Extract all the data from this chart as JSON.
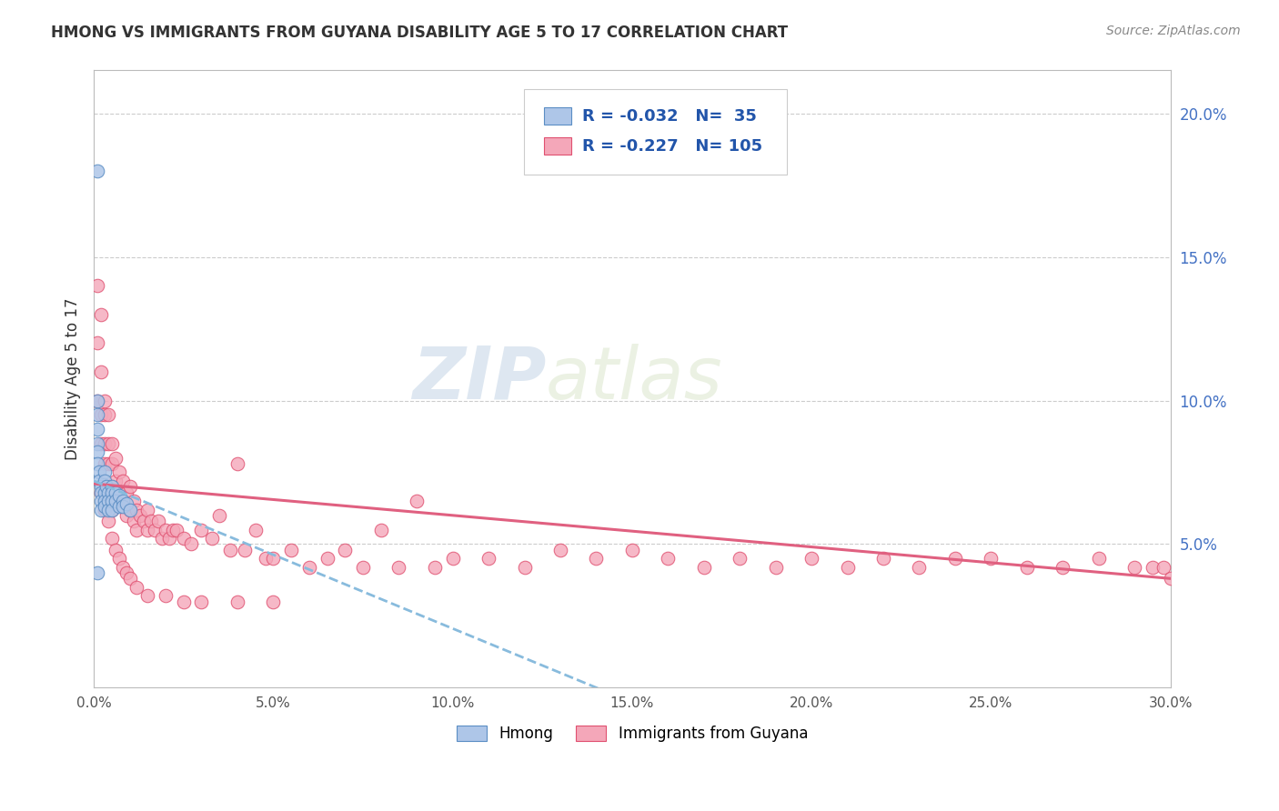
{
  "title": "HMONG VS IMMIGRANTS FROM GUYANA DISABILITY AGE 5 TO 17 CORRELATION CHART",
  "source": "Source: ZipAtlas.com",
  "ylabel": "Disability Age 5 to 17",
  "xmin": 0.0,
  "xmax": 0.3,
  "ymin": 0.0,
  "ymax": 0.215,
  "xticks": [
    0.0,
    0.05,
    0.1,
    0.15,
    0.2,
    0.25,
    0.3
  ],
  "xtick_labels": [
    "0.0%",
    "5.0%",
    "10.0%",
    "15.0%",
    "20.0%",
    "25.0%",
    "30.0%"
  ],
  "yticks_right": [
    0.05,
    0.1,
    0.15,
    0.2
  ],
  "ytick_right_labels": [
    "5.0%",
    "10.0%",
    "15.0%",
    "20.0%"
  ],
  "hmong_R": -0.032,
  "hmong_N": 35,
  "guyana_R": -0.227,
  "guyana_N": 105,
  "hmong_color": "#aec6e8",
  "guyana_color": "#f4a7b9",
  "hmong_edge": "#5b8ec4",
  "guyana_edge": "#e05070",
  "trend_hmong_color": "#88bbdd",
  "trend_guyana_color": "#e06080",
  "watermark_zip": "ZIP",
  "watermark_atlas": "atlas",
  "legend_labels": [
    "Hmong",
    "Immigrants from Guyana"
  ],
  "hmong_x": [
    0.001,
    0.001,
    0.001,
    0.001,
    0.001,
    0.001,
    0.001,
    0.0015,
    0.0015,
    0.002,
    0.002,
    0.002,
    0.002,
    0.003,
    0.003,
    0.003,
    0.003,
    0.003,
    0.0035,
    0.004,
    0.004,
    0.004,
    0.005,
    0.005,
    0.005,
    0.005,
    0.006,
    0.006,
    0.007,
    0.007,
    0.008,
    0.008,
    0.009,
    0.01,
    0.001
  ],
  "hmong_y": [
    0.18,
    0.1,
    0.095,
    0.09,
    0.085,
    0.082,
    0.078,
    0.075,
    0.072,
    0.07,
    0.068,
    0.065,
    0.062,
    0.075,
    0.072,
    0.068,
    0.065,
    0.063,
    0.07,
    0.068,
    0.065,
    0.062,
    0.07,
    0.068,
    0.065,
    0.062,
    0.068,
    0.065,
    0.067,
    0.063,
    0.065,
    0.063,
    0.064,
    0.062,
    0.04
  ],
  "guyana_x": [
    0.001,
    0.001,
    0.001,
    0.002,
    0.002,
    0.002,
    0.002,
    0.003,
    0.003,
    0.003,
    0.003,
    0.004,
    0.004,
    0.004,
    0.004,
    0.005,
    0.005,
    0.005,
    0.005,
    0.006,
    0.006,
    0.006,
    0.007,
    0.007,
    0.008,
    0.008,
    0.009,
    0.009,
    0.01,
    0.01,
    0.011,
    0.011,
    0.012,
    0.012,
    0.013,
    0.014,
    0.015,
    0.015,
    0.016,
    0.017,
    0.018,
    0.019,
    0.02,
    0.021,
    0.022,
    0.023,
    0.025,
    0.027,
    0.03,
    0.033,
    0.035,
    0.038,
    0.04,
    0.042,
    0.045,
    0.048,
    0.05,
    0.055,
    0.06,
    0.065,
    0.07,
    0.075,
    0.08,
    0.085,
    0.09,
    0.095,
    0.1,
    0.11,
    0.12,
    0.13,
    0.14,
    0.15,
    0.16,
    0.17,
    0.18,
    0.19,
    0.2,
    0.21,
    0.22,
    0.23,
    0.24,
    0.25,
    0.26,
    0.27,
    0.28,
    0.29,
    0.295,
    0.298,
    0.3,
    0.002,
    0.003,
    0.004,
    0.005,
    0.006,
    0.007,
    0.008,
    0.009,
    0.01,
    0.012,
    0.015,
    0.02,
    0.025,
    0.03,
    0.04,
    0.05
  ],
  "guyana_y": [
    0.14,
    0.12,
    0.1,
    0.13,
    0.11,
    0.095,
    0.085,
    0.1,
    0.095,
    0.085,
    0.078,
    0.095,
    0.085,
    0.078,
    0.07,
    0.085,
    0.078,
    0.07,
    0.062,
    0.08,
    0.072,
    0.065,
    0.075,
    0.068,
    0.072,
    0.065,
    0.068,
    0.06,
    0.07,
    0.062,
    0.065,
    0.058,
    0.062,
    0.055,
    0.06,
    0.058,
    0.062,
    0.055,
    0.058,
    0.055,
    0.058,
    0.052,
    0.055,
    0.052,
    0.055,
    0.055,
    0.052,
    0.05,
    0.055,
    0.052,
    0.06,
    0.048,
    0.078,
    0.048,
    0.055,
    0.045,
    0.045,
    0.048,
    0.042,
    0.045,
    0.048,
    0.042,
    0.055,
    0.042,
    0.065,
    0.042,
    0.045,
    0.045,
    0.042,
    0.048,
    0.045,
    0.048,
    0.045,
    0.042,
    0.045,
    0.042,
    0.045,
    0.042,
    0.045,
    0.042,
    0.045,
    0.045,
    0.042,
    0.042,
    0.045,
    0.042,
    0.042,
    0.042,
    0.038,
    0.068,
    0.062,
    0.058,
    0.052,
    0.048,
    0.045,
    0.042,
    0.04,
    0.038,
    0.035,
    0.032,
    0.032,
    0.03,
    0.03,
    0.03,
    0.03
  ],
  "hmong_trend_x_start": 0.0,
  "hmong_trend_x_end": 0.17,
  "guyana_trend_x_start": 0.0,
  "guyana_trend_x_end": 0.3
}
